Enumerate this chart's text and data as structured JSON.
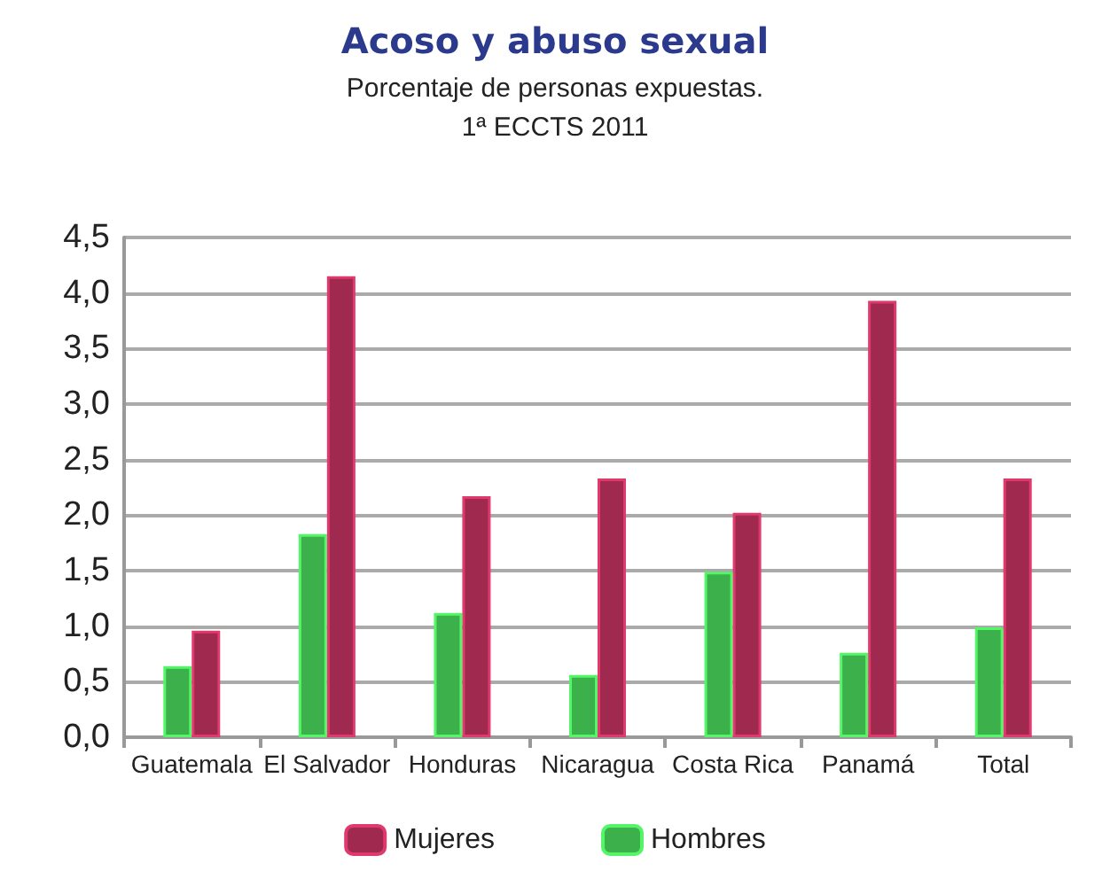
{
  "chart_data": {
    "type": "bar",
    "title": "Acoso y abuso sexual",
    "subtitle": "Porcentaje de personas expuestas.\n1ª ECCTS 2011",
    "categories": [
      "Guatemala",
      "El Salvador",
      "Honduras",
      "Nicaragua",
      "Costa Rica",
      "Panamá",
      "Total"
    ],
    "series": [
      {
        "name": "Hombres",
        "color": "#3cb04a",
        "values": [
          0.64,
          1.83,
          1.12,
          0.56,
          1.49,
          0.76,
          0.99
        ]
      },
      {
        "name": "Mujeres",
        "color": "#a0294f",
        "values": [
          0.96,
          4.15,
          2.17,
          2.33,
          2.02,
          3.93,
          2.33
        ]
      }
    ],
    "ylim": [
      0,
      4.5
    ],
    "yticks": [
      {
        "value": 0,
        "label": "0,0"
      },
      {
        "value": 0.5,
        "label": "0,5"
      },
      {
        "value": 1,
        "label": "1,0"
      },
      {
        "value": 1.5,
        "label": "1,5"
      },
      {
        "value": 2,
        "label": "2,0"
      },
      {
        "value": 2.5,
        "label": "2,5"
      },
      {
        "value": 3,
        "label": "3,0"
      },
      {
        "value": 3.5,
        "label": "3,5"
      },
      {
        "value": 4,
        "label": "4,0"
      },
      {
        "value": 4.5,
        "label": "4,5"
      }
    ],
    "grid": "y",
    "legend": "bottom"
  }
}
